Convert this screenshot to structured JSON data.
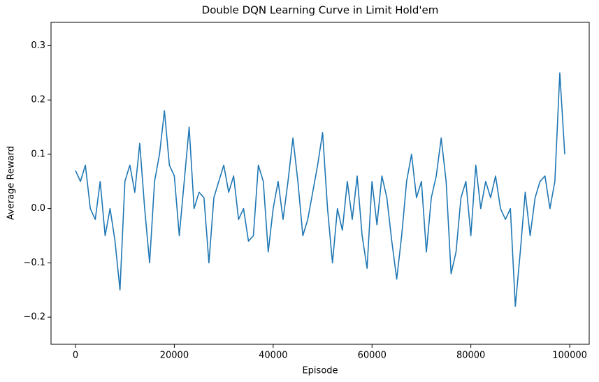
{
  "chart_data": {
    "type": "line",
    "title": "Double DQN Learning Curve in Limit Hold'em",
    "x_label": "Episode",
    "y_label": "Average Reward",
    "x": [
      0,
      1000,
      2000,
      3000,
      4000,
      5000,
      6000,
      7000,
      8000,
      9000,
      10000,
      11000,
      12000,
      13000,
      14000,
      15000,
      16000,
      17000,
      18000,
      19000,
      20000,
      21000,
      22000,
      23000,
      24000,
      25000,
      26000,
      27000,
      28000,
      29000,
      30000,
      31000,
      32000,
      33000,
      34000,
      35000,
      36000,
      37000,
      38000,
      39000,
      40000,
      41000,
      42000,
      43000,
      44000,
      45000,
      46000,
      47000,
      48000,
      49000,
      50000,
      51000,
      52000,
      53000,
      54000,
      55000,
      56000,
      57000,
      58000,
      59000,
      60000,
      61000,
      62000,
      63000,
      64000,
      65000,
      66000,
      67000,
      68000,
      69000,
      70000,
      71000,
      72000,
      73000,
      74000,
      75000,
      76000,
      77000,
      78000,
      79000,
      80000,
      81000,
      82000,
      83000,
      84000,
      85000,
      86000,
      87000,
      88000,
      89000,
      90000,
      91000,
      92000,
      93000,
      94000,
      95000,
      96000,
      97000,
      98000,
      99000
    ],
    "series": [
      {
        "name": "Average Reward",
        "color": "#1f77b4",
        "values": [
          0.07,
          0.05,
          0.08,
          0.0,
          -0.02,
          0.05,
          -0.05,
          0.0,
          -0.06,
          -0.15,
          0.05,
          0.08,
          0.03,
          0.12,
          0.0,
          -0.1,
          0.05,
          0.1,
          0.18,
          0.08,
          0.06,
          -0.05,
          0.05,
          0.15,
          0.0,
          0.03,
          0.02,
          -0.1,
          0.02,
          0.05,
          0.08,
          0.03,
          0.06,
          -0.02,
          0.0,
          -0.06,
          -0.05,
          0.08,
          0.05,
          -0.08,
          0.0,
          0.05,
          -0.02,
          0.05,
          0.13,
          0.05,
          -0.05,
          -0.02,
          0.03,
          0.08,
          0.14,
          0.0,
          -0.1,
          0.0,
          -0.04,
          0.05,
          -0.02,
          0.06,
          -0.05,
          -0.11,
          0.05,
          -0.03,
          0.06,
          0.02,
          -0.06,
          -0.13,
          -0.05,
          0.05,
          0.1,
          0.02,
          0.05,
          -0.08,
          0.02,
          0.06,
          0.13,
          0.05,
          -0.12,
          -0.08,
          0.02,
          0.05,
          -0.05,
          0.08,
          0.0,
          0.05,
          0.02,
          0.06,
          0.0,
          -0.02,
          0.0,
          -0.18,
          -0.08,
          0.03,
          -0.05,
          0.02,
          0.05,
          0.06,
          0.0,
          0.05,
          0.25,
          0.1
        ]
      }
    ],
    "xlim": [
      -4950,
      103950
    ],
    "xticks": [
      0,
      20000,
      40000,
      60000,
      80000,
      100000
    ],
    "ylim": [
      -0.25,
      0.343
    ],
    "yticks": [
      {
        "value": -0.2,
        "label": "−0.2"
      },
      {
        "value": -0.1,
        "label": "−0.1"
      },
      {
        "value": 0,
        "label": "0.0"
      },
      0.1,
      0.2,
      0.3
    ],
    "grid": false
  }
}
